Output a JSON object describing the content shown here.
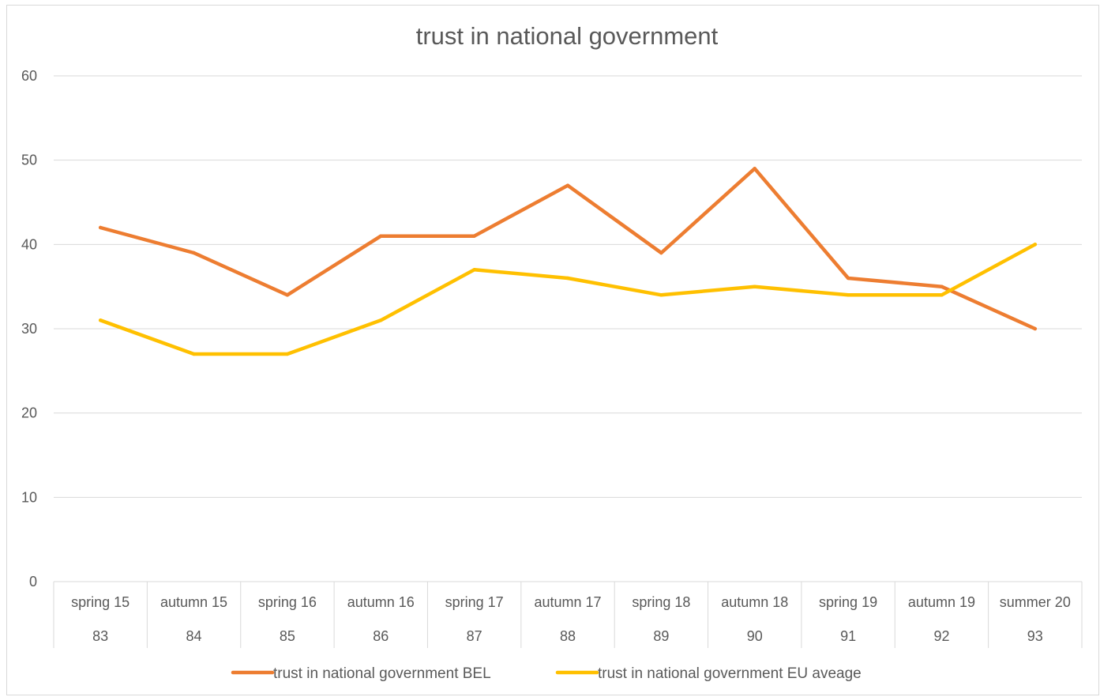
{
  "chart_data": {
    "type": "line",
    "title": "trust in national government",
    "xlabel": "",
    "ylabel": "",
    "ylim": [
      0,
      60
    ],
    "yticks": [
      0,
      10,
      20,
      30,
      40,
      50,
      60
    ],
    "grid": true,
    "legend_position": "bottom",
    "categories": [
      [
        "spring 15",
        "83"
      ],
      [
        "autumn 15",
        "84"
      ],
      [
        "spring 16",
        "85"
      ],
      [
        "autumn 16",
        "86"
      ],
      [
        "spring 17",
        "87"
      ],
      [
        "autumn 17",
        "88"
      ],
      [
        "spring 18",
        "89"
      ],
      [
        "autumn 18",
        "90"
      ],
      [
        "spring 19",
        "91"
      ],
      [
        "autumn 19",
        "92"
      ],
      [
        "summer 20",
        "93"
      ]
    ],
    "series": [
      {
        "name": "trust in national government BEL",
        "color": "#ED7D31",
        "values": [
          42,
          39,
          34,
          41,
          41,
          47,
          39,
          49,
          36,
          35,
          30
        ]
      },
      {
        "name": "trust in national government EU aveage",
        "color": "#FFC000",
        "values": [
          31,
          27,
          27,
          31,
          37,
          36,
          34,
          35,
          34,
          34,
          40
        ]
      }
    ]
  }
}
